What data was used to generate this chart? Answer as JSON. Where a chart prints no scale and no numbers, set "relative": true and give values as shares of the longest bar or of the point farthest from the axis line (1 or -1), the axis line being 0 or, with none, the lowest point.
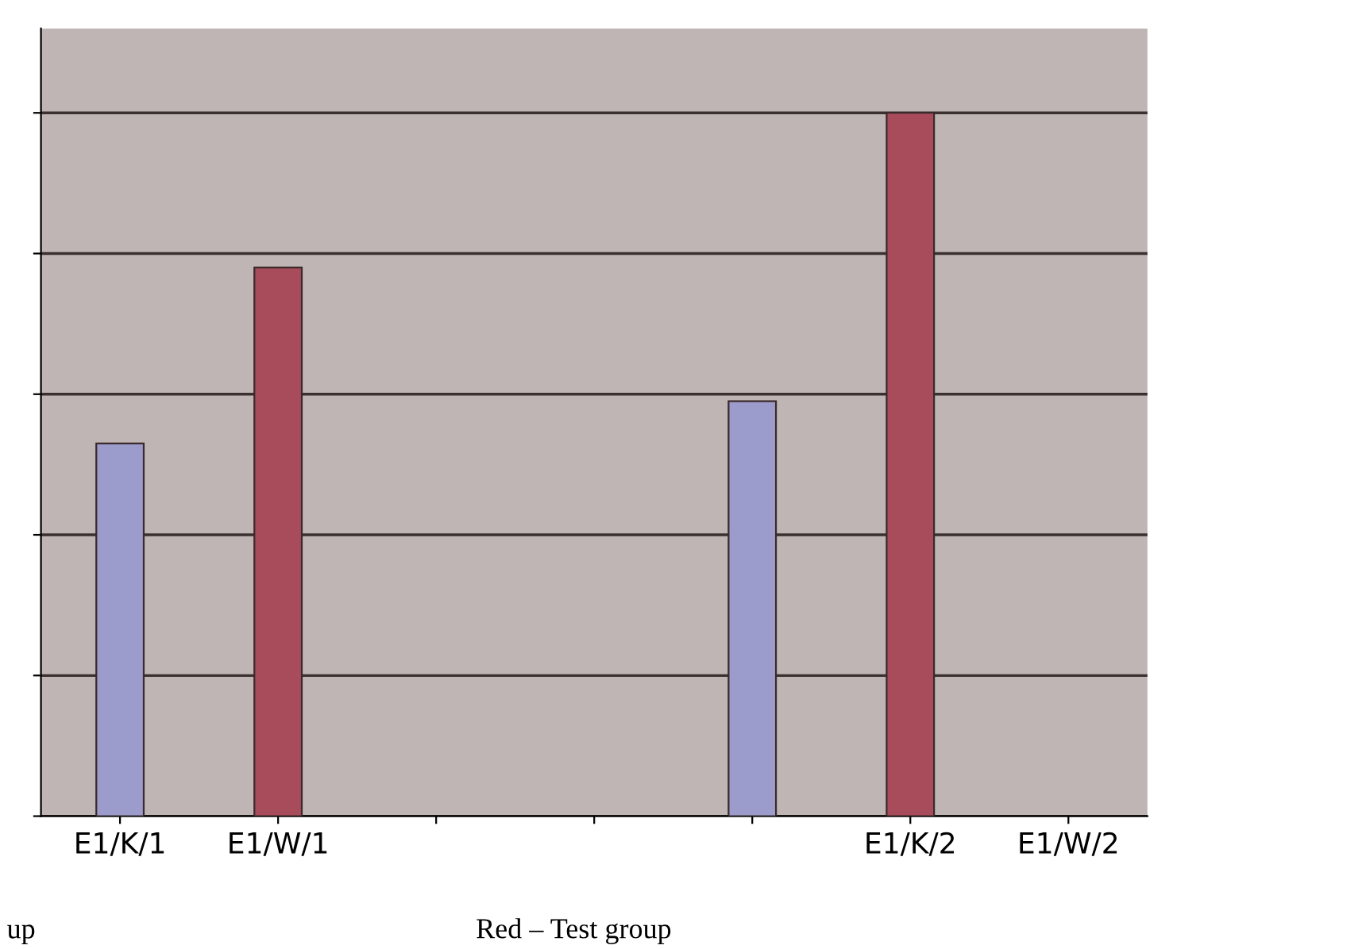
{
  "chart_data": {
    "type": "bar",
    "relative": true,
    "categories": [
      "E1/K/1",
      "E1/W/1",
      null,
      null,
      null,
      "E1/K/2",
      "E1/W/2"
    ],
    "series": [
      {
        "color": "#9c9ccc",
        "values": [
          0.53,
          null,
          null,
          null,
          0.59,
          null,
          null
        ]
      },
      {
        "color": "#a84c5c",
        "values": [
          null,
          0.78,
          null,
          null,
          null,
          1.0,
          null
        ]
      }
    ],
    "grid": "y",
    "tick_labels": "x",
    "annotations": [
      "up",
      "Red – Test group"
    ]
  }
}
